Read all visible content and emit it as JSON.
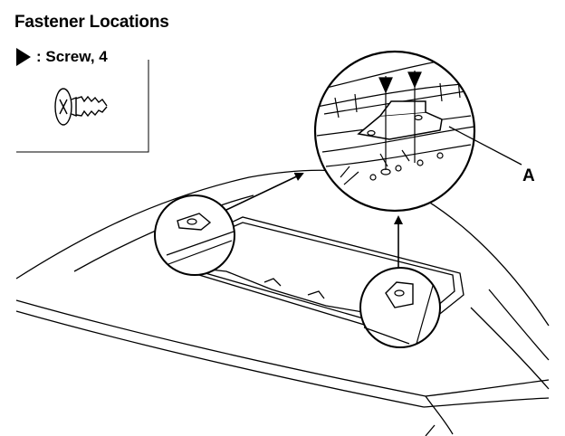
{
  "header": {
    "title": "Fastener Locations"
  },
  "legend": {
    "symbol_icon": "filled-triangle-icon",
    "text": ": Screw, 4"
  },
  "callouts": {
    "a_label": "A"
  }
}
